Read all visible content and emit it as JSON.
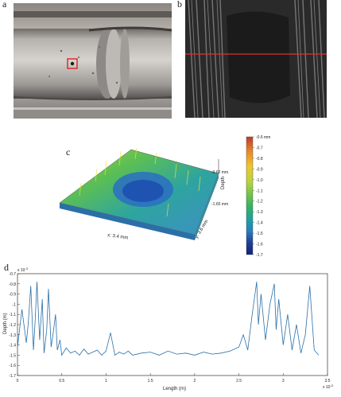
{
  "figure": {
    "labels": {
      "a": "a",
      "b": "b",
      "c": "c",
      "d": "d"
    }
  },
  "panel_c": {
    "x_axis_label": "x: 3.4 mm",
    "y_axis_label": "y: 3.6 mm",
    "z_axis_label": "Depth",
    "z_top_label": "-0.62 mm",
    "z_bottom_label": "-1.65 mm",
    "colorbar": {
      "ticks": [
        "-0.6 mm",
        "-0.7",
        "-0.8",
        "-0.9",
        "-1.0",
        "-1.1",
        "-1.2",
        "-1.3",
        "-1.4",
        "-1.5",
        "-1.6",
        "-1.7"
      ],
      "colors": [
        "#c0392b",
        "#e8862a",
        "#f0c530",
        "#b8d63a",
        "#6cc24a",
        "#33b06a",
        "#1fa0a0",
        "#2a7fc0",
        "#2c5fb0",
        "#1e3f96",
        "#12227a"
      ]
    }
  },
  "chart_data": {
    "type": "line",
    "title": "",
    "xlabel": "Length (m)",
    "ylabel": "Depth (m)",
    "x_exponent_label": "x 10",
    "x_exponent": "-3",
    "y_exponent_label": "x 10",
    "y_exponent": "-3",
    "xlim": [
      0,
      3.5
    ],
    "ylim": [
      -1.7,
      -0.7
    ],
    "x_ticks": [
      "0",
      "0.5",
      "1",
      "1.5",
      "2",
      "2.5",
      "3",
      "3.5"
    ],
    "y_ticks": [
      "-0.7",
      "-0.8",
      "-0.9",
      "-1",
      "-1.1",
      "-1.2",
      "-1.3",
      "-1.4",
      "-1.5",
      "-1.6",
      "-1.7"
    ],
    "line_color": "#2a6fa8",
    "series": [
      {
        "x": [
          0.0,
          0.05,
          0.1,
          0.12,
          0.15,
          0.18,
          0.2,
          0.22,
          0.25,
          0.28,
          0.3,
          0.33,
          0.35,
          0.38,
          0.4,
          0.43,
          0.45,
          0.48,
          0.5,
          0.55,
          0.6,
          0.65,
          0.7,
          0.75,
          0.8,
          0.85,
          0.9,
          0.95,
          1.0,
          1.05,
          1.1,
          1.15,
          1.2,
          1.25,
          1.3,
          1.4,
          1.5,
          1.6,
          1.7,
          1.8,
          1.9,
          2.0,
          2.1,
          2.2,
          2.3,
          2.4,
          2.5,
          2.55,
          2.6,
          2.65,
          2.7,
          2.72,
          2.75,
          2.8,
          2.85,
          2.9,
          2.92,
          2.95,
          3.0,
          3.05,
          3.1,
          3.15,
          3.2,
          3.25,
          3.3,
          3.35,
          3.4
        ],
        "y": [
          -1.42,
          -1.05,
          -1.38,
          -1.2,
          -0.82,
          -1.45,
          -1.15,
          -0.78,
          -1.35,
          -0.95,
          -1.48,
          -1.25,
          -0.85,
          -1.42,
          -1.3,
          -1.1,
          -1.45,
          -1.35,
          -1.5,
          -1.43,
          -1.48,
          -1.46,
          -1.5,
          -1.44,
          -1.49,
          -1.47,
          -1.45,
          -1.5,
          -1.46,
          -1.28,
          -1.5,
          -1.47,
          -1.49,
          -1.46,
          -1.5,
          -1.48,
          -1.47,
          -1.5,
          -1.46,
          -1.49,
          -1.48,
          -1.5,
          -1.47,
          -1.49,
          -1.48,
          -1.46,
          -1.42,
          -1.3,
          -1.45,
          -1.1,
          -0.78,
          -1.2,
          -0.9,
          -1.35,
          -1.0,
          -0.8,
          -1.25,
          -0.95,
          -1.4,
          -1.1,
          -1.45,
          -1.2,
          -1.48,
          -1.3,
          -0.82,
          -1.45,
          -1.5
        ]
      }
    ]
  }
}
